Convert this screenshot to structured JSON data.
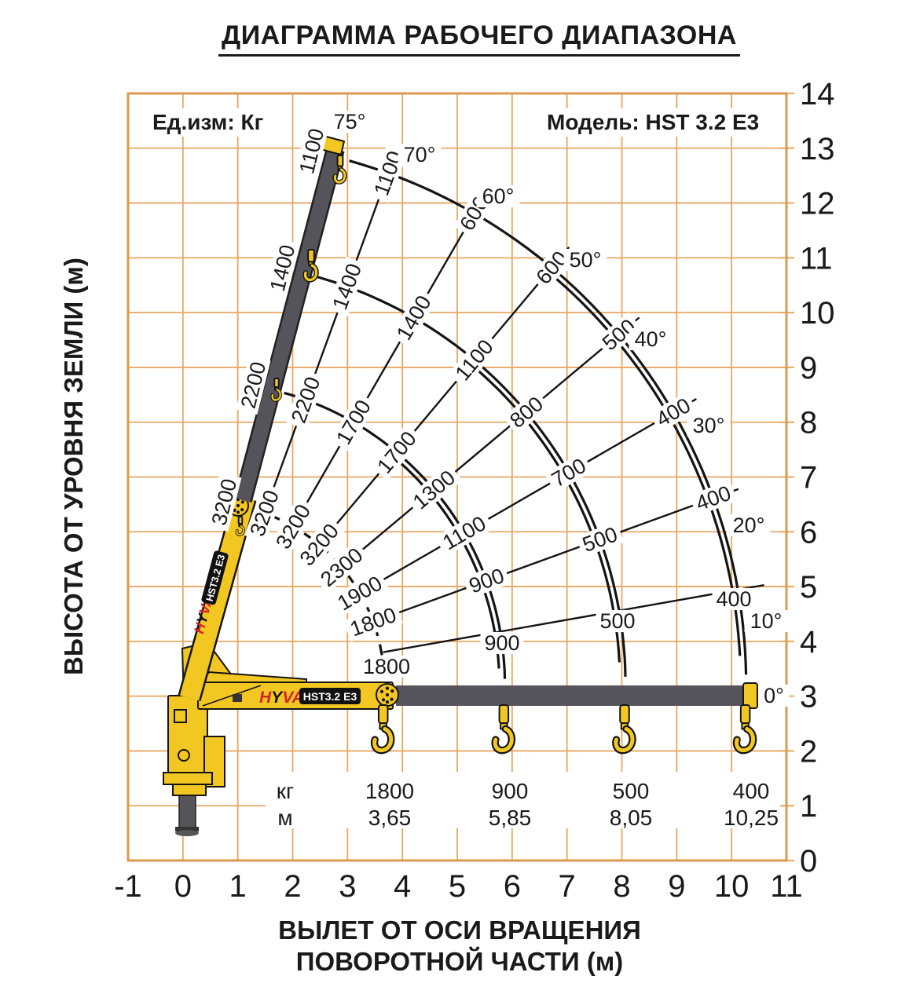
{
  "title": "ДИАГРАММА РАБОЧЕГО ДИАПАЗОНА",
  "header": {
    "unit_label": "Ед.изм: Кг",
    "model_label": "Модель: HST 3.2 E3"
  },
  "axes": {
    "x": {
      "title_line1": "ВЫЛЕТ ОТ ОСИ ВРАЩЕНИЯ",
      "title_line2": "ПОВОРОТНОЙ ЧАСТИ (м)",
      "ticks": [
        -1,
        0,
        1,
        2,
        3,
        4,
        5,
        6,
        7,
        8,
        9,
        10,
        11
      ]
    },
    "y": {
      "title": "ВЫСОТА ОТ УРОВНЯ ЗЕМЛИ (м)",
      "ticks": [
        0,
        1,
        2,
        3,
        4,
        5,
        6,
        7,
        8,
        9,
        10,
        11,
        12,
        13,
        14
      ]
    }
  },
  "chart_data": {
    "type": "crane_working_range",
    "title": "ДИАГРАММА РАБОЧЕГО ДИАПАЗОНА",
    "units": "kg (load), m (reach/height)",
    "pivot": {
      "x": 0.35,
      "y": 3.22
    },
    "boom_drawn_angle_deg": 76,
    "extension_radii_m": [
      3.32,
      5.52,
      7.72,
      9.92
    ],
    "angle_lines_deg": [
      10,
      20,
      30,
      40,
      50,
      60,
      70
    ],
    "angle_labels": [
      "0°",
      "10°",
      "20°",
      "30°",
      "40°",
      "50°",
      "60°",
      "70°",
      "75°"
    ],
    "capacities_kg_inner_to_outer": {
      "75": [
        3200,
        2200,
        1400,
        1100
      ],
      "70": [
        3200,
        2200,
        1400,
        1100
      ],
      "60": [
        3200,
        1700,
        1400,
        600
      ],
      "50": [
        3200,
        1700,
        1100,
        600
      ],
      "40": [
        2300,
        1300,
        800,
        500
      ],
      "30": [
        1900,
        1100,
        700,
        400
      ],
      "20": [
        1800,
        900,
        500,
        400
      ],
      "10": [
        1800,
        900,
        500,
        400
      ]
    },
    "ground_table": {
      "row_labels": [
        "кг",
        "м"
      ],
      "capacity_row": [
        "1800",
        "900",
        "500",
        "400"
      ],
      "outreach_row": [
        "3,65",
        "5,85",
        "8,05",
        "10,25"
      ],
      "outreach_m": [
        3.65,
        5.85,
        8.05,
        10.25
      ]
    }
  },
  "crane": {
    "brand": "HYVA",
    "model_plate": "HST3.2 E3"
  },
  "colors": {
    "grid": "#E9A660",
    "plot_border": "#DC9A4C",
    "line": "#141414",
    "crane_yellow": "#F3C722",
    "crane_gray": "#54545A",
    "brand_red": "#D2232A",
    "plate_black": "#111111",
    "text": "#1a1a1a"
  }
}
